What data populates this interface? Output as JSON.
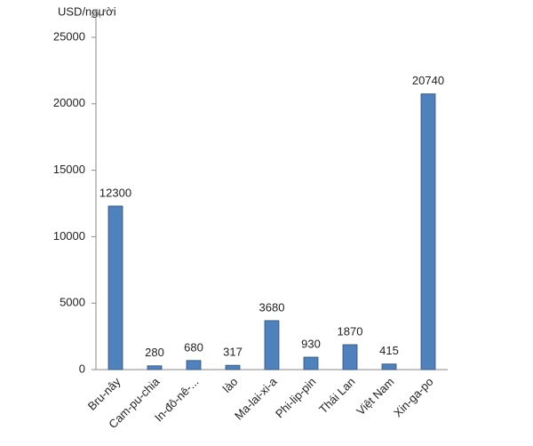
{
  "chart_data": {
    "type": "bar",
    "y_label": "USD/người",
    "categories": [
      "Bru-nây",
      "Cam-pu-chia",
      "In-đô-nê-...",
      "lào",
      "Ma-lai-xi-a",
      "Phi-lip-pin",
      "Thái Lan",
      "Việt Nam",
      "Xin-ga-po"
    ],
    "values": [
      12300,
      280,
      680,
      317,
      3680,
      930,
      1870,
      415,
      20740
    ],
    "color": "#4f81bd",
    "ylim": [
      0,
      25000
    ],
    "yticks": [
      0,
      5000,
      10000,
      15000,
      20000,
      25000
    ],
    "grid": false
  }
}
